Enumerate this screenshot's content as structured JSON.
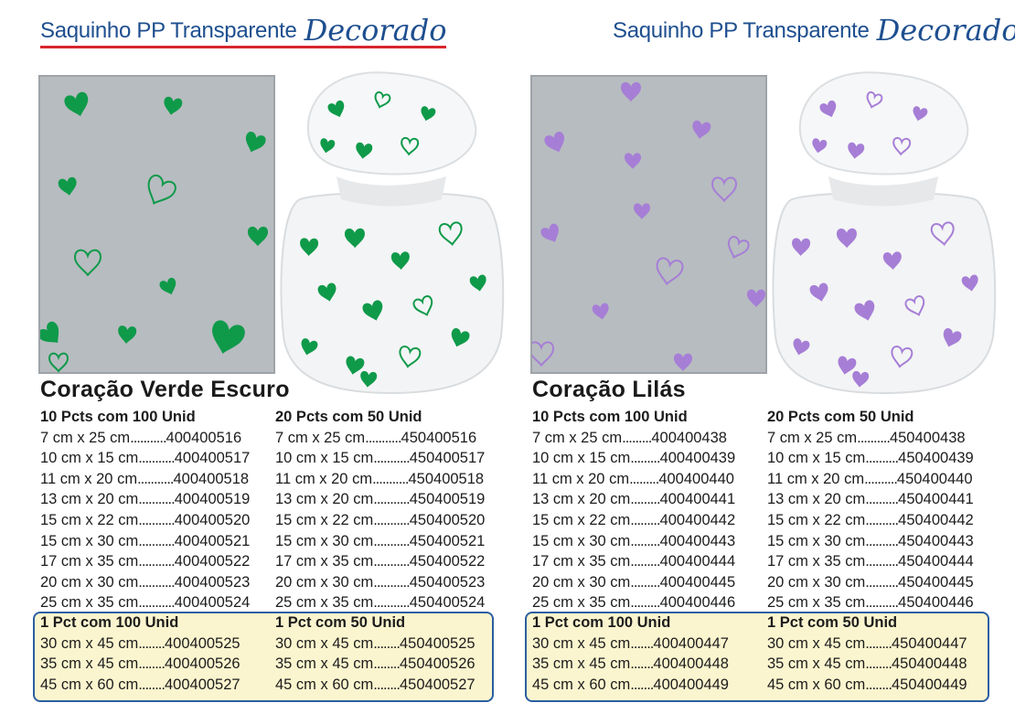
{
  "headers": {
    "left": {
      "main": "Saquinho PP Transparente",
      "script": "Decorado"
    },
    "right": {
      "main": "Saquinho PP Transparente",
      "script": "Decorado"
    }
  },
  "colors": {
    "green": "#0f9a4a",
    "lilac": "#a67ed6",
    "blue": "#1e4f8f",
    "red": "#d8262e"
  },
  "products": [
    {
      "title": "Coração Verde Escuro",
      "heart_color": "#0f9a4a",
      "col_a": {
        "header": "10 Pcts com 100 Unid",
        "rows": [
          {
            "size": "7 cm x 25 cm",
            "code": "400400516"
          },
          {
            "size": "10 cm x 15 cm",
            "code": "400400517"
          },
          {
            "size": "11 cm x 20 cm",
            "code": "400400518"
          },
          {
            "size": "13 cm x 20 cm",
            "code": "400400519"
          },
          {
            "size": "15 cm x 22 cm",
            "code": "400400520"
          },
          {
            "size": "15 cm x 30 cm",
            "code": "400400521"
          },
          {
            "size": "17 cm x 35 cm",
            "code": "400400522"
          },
          {
            "size": "20 cm x 30 cm",
            "code": "400400523"
          },
          {
            "size": "25 cm x 35 cm",
            "code": "400400524"
          }
        ]
      },
      "col_b": {
        "header": "20 Pcts com 50 Unid",
        "rows": [
          {
            "size": "7 cm x 25 cm",
            "code": "450400516"
          },
          {
            "size": "10 cm x 15 cm",
            "code": "450400517"
          },
          {
            "size": "11 cm x 20 cm",
            "code": "450400518"
          },
          {
            "size": "13 cm x 20 cm",
            "code": "450400519"
          },
          {
            "size": "15 cm x 22 cm",
            "code": "450400520"
          },
          {
            "size": "15 cm x 30 cm",
            "code": "450400521"
          },
          {
            "size": "17 cm x 35 cm",
            "code": "450400522"
          },
          {
            "size": "20 cm x 30 cm",
            "code": "450400523"
          },
          {
            "size": "25 cm x 35 cm",
            "code": "450400524"
          }
        ]
      },
      "col_c": {
        "header": "1 Pct com 100 Unid",
        "rows": [
          {
            "size": "30 cm x 45 cm",
            "code": "400400525"
          },
          {
            "size": "35 cm x 45 cm",
            "code": "400400526"
          },
          {
            "size": "45 cm x 60 cm",
            "code": "400400527"
          }
        ]
      },
      "col_d": {
        "header": "1 Pct com 50 Unid",
        "rows": [
          {
            "size": "30 cm x 45 cm",
            "code": "450400525"
          },
          {
            "size": "35 cm x 45 cm",
            "code": "450400526"
          },
          {
            "size": "45 cm x 60 cm",
            "code": "450400527"
          }
        ]
      }
    },
    {
      "title": "Coração Lilás",
      "heart_color": "#a67ed6",
      "col_a": {
        "header": "10 Pcts com 100 Unid",
        "rows": [
          {
            "size": "7 cm x 25 cm",
            "code": "400400438"
          },
          {
            "size": "10 cm x 15 cm",
            "code": "400400439"
          },
          {
            "size": "11 cm x 20 cm",
            "code": "400400440"
          },
          {
            "size": "13 cm x 20 cm",
            "code": "400400441"
          },
          {
            "size": "15 cm x 22 cm",
            "code": "400400442"
          },
          {
            "size": "15 cm x 30 cm",
            "code": "400400443"
          },
          {
            "size": "17 cm x 35 cm",
            "code": "400400444"
          },
          {
            "size": "20 cm x 30 cm",
            "code": "400400445"
          },
          {
            "size": "25 cm x 35 cm",
            "code": "400400446"
          }
        ]
      },
      "col_b": {
        "header": "20 Pcts com 50 Unid",
        "rows": [
          {
            "size": "7 cm x 25 cm",
            "code": "450400438"
          },
          {
            "size": "10 cm x 15 cm",
            "code": "450400439"
          },
          {
            "size": "11 cm x 20 cm",
            "code": "450400440"
          },
          {
            "size": "13 cm x 20 cm",
            "code": "450400441"
          },
          {
            "size": "15 cm x 22 cm",
            "code": "450400442"
          },
          {
            "size": "15 cm x 30 cm",
            "code": "450400443"
          },
          {
            "size": "17 cm x 35 cm",
            "code": "450400444"
          },
          {
            "size": "20 cm x 30 cm",
            "code": "450400445"
          },
          {
            "size": "25 cm x 35 cm",
            "code": "450400446"
          }
        ]
      },
      "col_c": {
        "header": "1 Pct com 100 Unid",
        "rows": [
          {
            "size": "30 cm x 45 cm",
            "code": "400400447"
          },
          {
            "size": "35 cm x 45 cm",
            "code": "400400448"
          },
          {
            "size": "45 cm x 60 cm",
            "code": "400400449"
          }
        ]
      },
      "col_d": {
        "header": "1 Pct com 50 Unid",
        "rows": [
          {
            "size": "30 cm x 45 cm",
            "code": "450400447"
          },
          {
            "size": "35 cm x 45 cm",
            "code": "450400448"
          },
          {
            "size": "45 cm x 60 cm",
            "code": "450400449"
          }
        ]
      }
    }
  ]
}
